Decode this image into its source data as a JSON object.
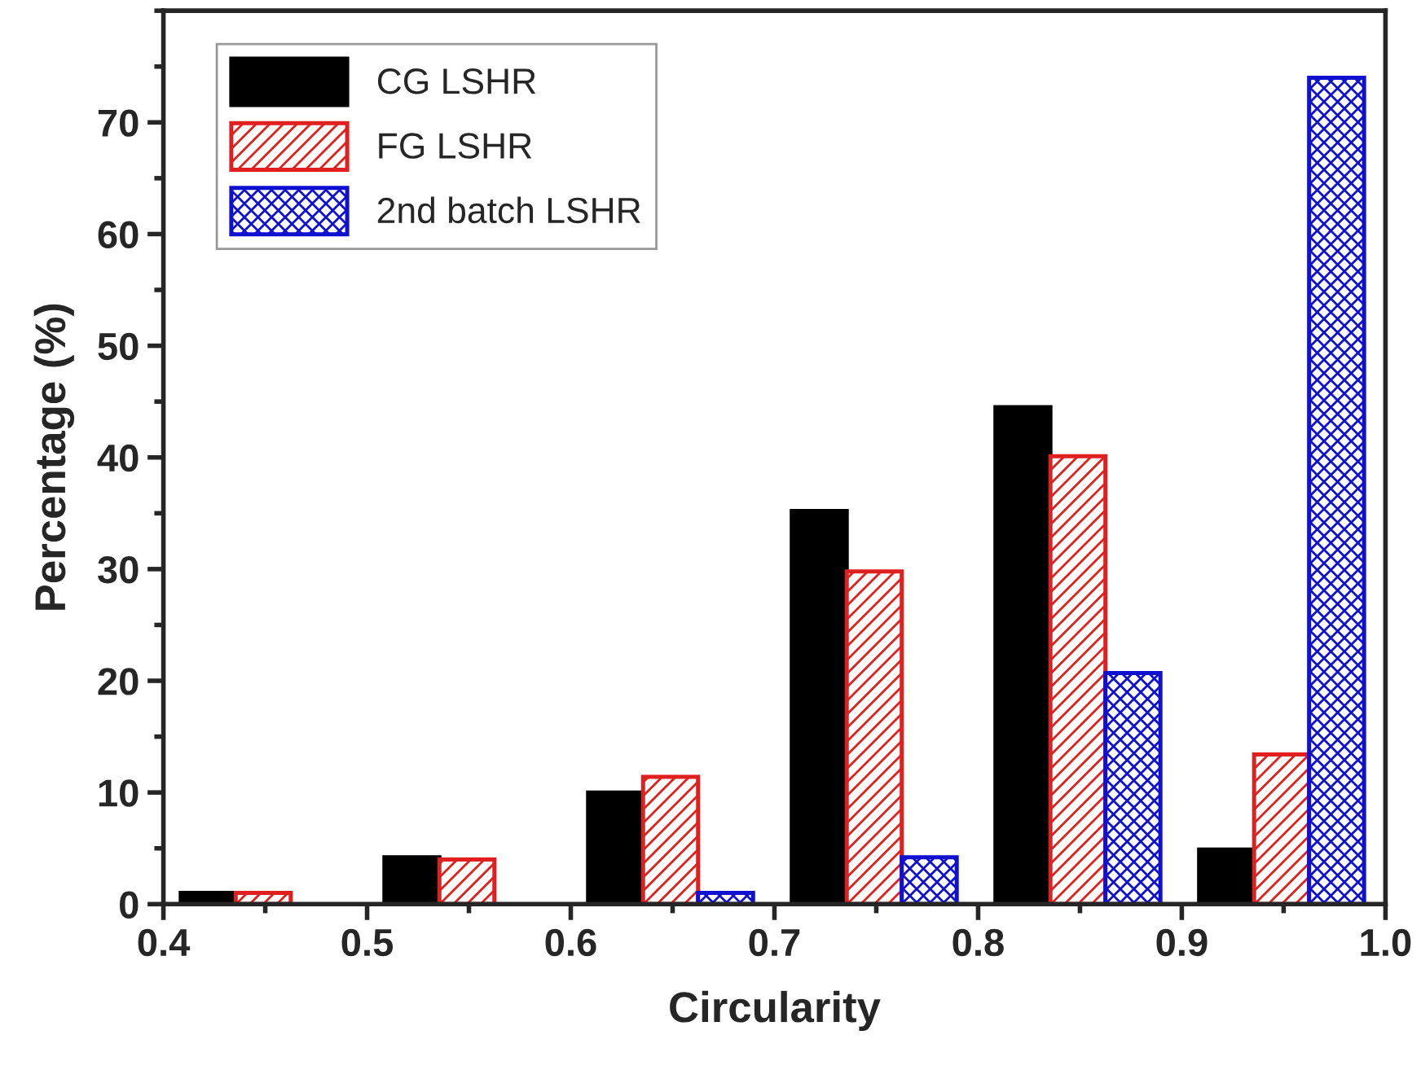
{
  "chart_data": {
    "type": "bar",
    "xlabel": "Circularity",
    "ylabel": "Percentage (%)",
    "xlim": [
      0.4,
      1.0
    ],
    "xticks": [
      0.4,
      0.5,
      0.6,
      0.7,
      0.8,
      0.9,
      {
        "value": 1.0,
        "label": "1.0"
      }
    ],
    "ylim": [
      0,
      80
    ],
    "yticks": [
      0,
      10,
      20,
      30,
      40,
      50,
      60,
      70
    ],
    "grid": false,
    "legend": "top left",
    "series": [
      {
        "name": "CG LSHR",
        "color": "#000000",
        "x": [
          0.422,
          0.522,
          0.622,
          0.722,
          0.822,
          0.922
        ],
        "values": [
          1,
          4.2,
          10,
          35.2,
          44.5,
          4.9
        ]
      },
      {
        "name": "FG LSHR",
        "color": "#e0201e",
        "x": [
          0.449,
          0.549,
          0.649,
          0.749,
          0.849,
          0.949
        ],
        "values": [
          1,
          4,
          11.4,
          29.8,
          40.1,
          13.4
        ]
      },
      {
        "name": "2nd batch LSHR",
        "color": "#1010d0",
        "x": [
          0.676,
          0.776,
          0.876,
          0.976
        ],
        "values": [
          1,
          4.2,
          20.7,
          74
        ]
      }
    ]
  }
}
